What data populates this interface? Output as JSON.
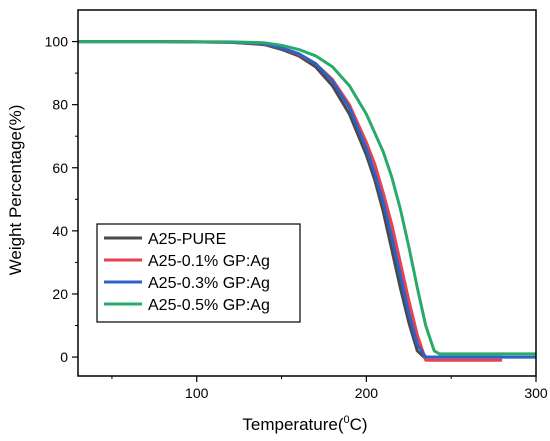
{
  "chart_data": {
    "type": "line",
    "xlabel": "Temperature(",
    "xlabel_sup": "0",
    "xlabel_tail": "C)",
    "ylabel": "Weight Percentage(%)",
    "xlim": [
      30,
      300
    ],
    "ylim": [
      -6,
      110
    ],
    "xticks": [
      100,
      200,
      300
    ],
    "yticks": [
      0,
      20,
      40,
      60,
      80,
      100
    ],
    "legend_position": "bottom-left",
    "grid": false,
    "series": [
      {
        "name": "A25-PURE",
        "color": "#4a4a4a",
        "points": [
          [
            30,
            100
          ],
          [
            80,
            100
          ],
          [
            120,
            99.8
          ],
          [
            140,
            99
          ],
          [
            150,
            97.5
          ],
          [
            160,
            95.5
          ],
          [
            170,
            92
          ],
          [
            180,
            86
          ],
          [
            190,
            77
          ],
          [
            200,
            64
          ],
          [
            205,
            56
          ],
          [
            210,
            46
          ],
          [
            215,
            34
          ],
          [
            220,
            22
          ],
          [
            225,
            11
          ],
          [
            230,
            2
          ],
          [
            234,
            0
          ],
          [
            250,
            0
          ],
          [
            280,
            0
          ]
        ]
      },
      {
        "name": "A25-0.1% GP:Ag",
        "color": "#e8414f",
        "points": [
          [
            30,
            100
          ],
          [
            80,
            100
          ],
          [
            120,
            99.8
          ],
          [
            140,
            99.2
          ],
          [
            150,
            98
          ],
          [
            160,
            96
          ],
          [
            170,
            93
          ],
          [
            180,
            88
          ],
          [
            190,
            80
          ],
          [
            200,
            68
          ],
          [
            205,
            61
          ],
          [
            210,
            52
          ],
          [
            215,
            42
          ],
          [
            220,
            30
          ],
          [
            225,
            18
          ],
          [
            230,
            7
          ],
          [
            235,
            -1
          ],
          [
            240,
            -1
          ],
          [
            280,
            -1
          ]
        ]
      },
      {
        "name": "A25-0.3% GP:Ag",
        "color": "#2a62c9",
        "points": [
          [
            30,
            100
          ],
          [
            80,
            100
          ],
          [
            120,
            99.8
          ],
          [
            140,
            99.3
          ],
          [
            150,
            98
          ],
          [
            160,
            96.2
          ],
          [
            170,
            93
          ],
          [
            180,
            87.5
          ],
          [
            190,
            79
          ],
          [
            200,
            66
          ],
          [
            205,
            58
          ],
          [
            210,
            49
          ],
          [
            215,
            38
          ],
          [
            220,
            26
          ],
          [
            225,
            14
          ],
          [
            230,
            4
          ],
          [
            235,
            0
          ],
          [
            240,
            0
          ],
          [
            300,
            0
          ]
        ]
      },
      {
        "name": "A25-0.5% GP:Ag",
        "color": "#2aaa6a",
        "points": [
          [
            30,
            100
          ],
          [
            80,
            100
          ],
          [
            120,
            99.9
          ],
          [
            140,
            99.6
          ],
          [
            150,
            98.8
          ],
          [
            160,
            97.5
          ],
          [
            170,
            95.5
          ],
          [
            180,
            92
          ],
          [
            190,
            86
          ],
          [
            200,
            77
          ],
          [
            210,
            65
          ],
          [
            215,
            57
          ],
          [
            220,
            47
          ],
          [
            225,
            35
          ],
          [
            230,
            22
          ],
          [
            235,
            10
          ],
          [
            240,
            2
          ],
          [
            243,
            1
          ],
          [
            260,
            1
          ],
          [
            300,
            1
          ]
        ]
      }
    ]
  }
}
